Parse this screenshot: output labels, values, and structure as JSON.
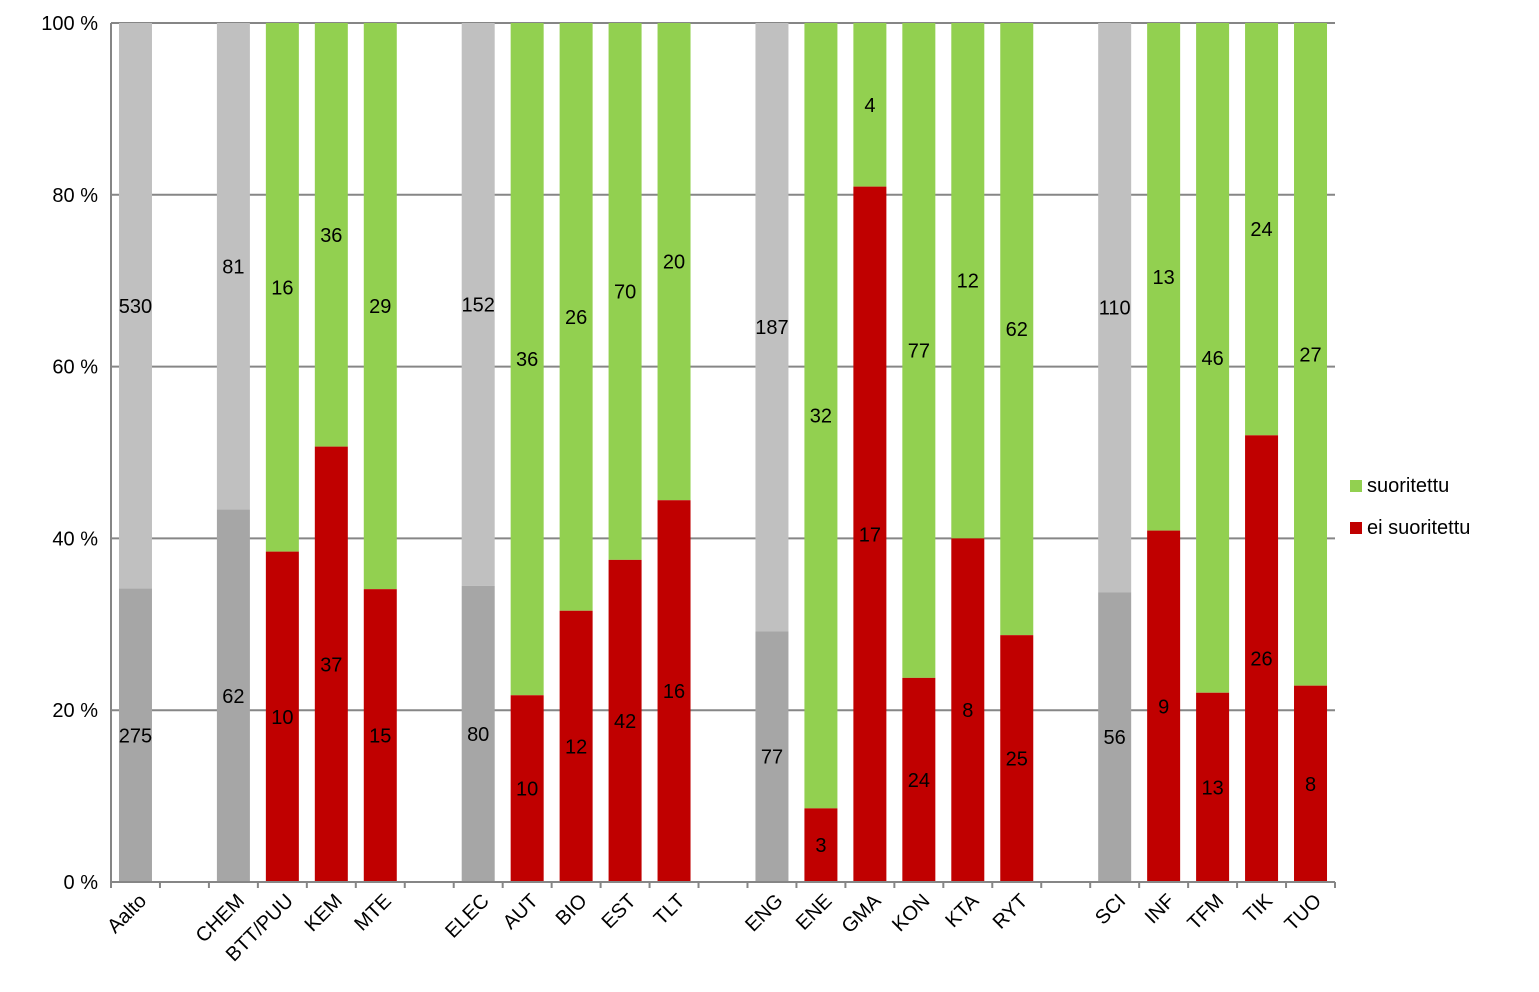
{
  "chart_data": {
    "type": "bar",
    "stacked": "percent",
    "ylim": [
      0,
      100
    ],
    "y_ticks": [
      "0 %",
      "20 %",
      "40 %",
      "60 %",
      "80 %",
      "100 %"
    ],
    "grid": true,
    "legend_position": "right",
    "categories": [
      "Aalto",
      "",
      "CHEM",
      "BTT/PUU",
      "KEM",
      "MTE",
      "",
      "ELEC",
      "AUT",
      "BIO",
      "EST",
      "TLT",
      "",
      "ENG",
      "ENE",
      "GMA",
      "KON",
      "KTA",
      "RYT",
      "",
      "SCI",
      "INF",
      "TFM",
      "TIK",
      "TUO"
    ],
    "summary_categories": [
      "Aalto",
      "CHEM",
      "ELEC",
      "ENG",
      "SCI"
    ],
    "series": [
      {
        "name": "ei suoritettu",
        "color": "#C00000",
        "values": [
          275,
          null,
          62,
          10,
          37,
          15,
          null,
          80,
          10,
          12,
          42,
          16,
          null,
          77,
          3,
          17,
          24,
          8,
          25,
          null,
          56,
          9,
          13,
          26,
          8
        ]
      },
      {
        "name": "suoritettu",
        "color": "#92D050",
        "values": [
          530,
          null,
          81,
          16,
          36,
          29,
          null,
          152,
          36,
          26,
          70,
          20,
          null,
          187,
          32,
          4,
          77,
          12,
          62,
          null,
          110,
          13,
          46,
          24,
          27
        ]
      }
    ],
    "summary_colors": {
      "lower": "#A6A6A6",
      "upper": "#C0C0C0"
    },
    "legend": [
      {
        "label": "suoritettu",
        "color": "#92D050"
      },
      {
        "label": "ei suoritettu",
        "color": "#C00000"
      }
    ]
  }
}
